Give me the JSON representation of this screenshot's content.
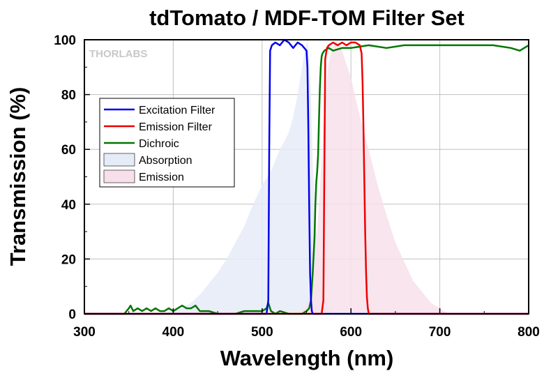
{
  "chart_data": {
    "type": "line",
    "title": "tdTomato / MDF-TOM Filter Set",
    "xlabel": "Wavelength (nm)",
    "ylabel": "Transmission (%)",
    "xlim": [
      300,
      800
    ],
    "ylim": [
      0,
      100
    ],
    "x_ticks": [
      300,
      400,
      500,
      600,
      700,
      800
    ],
    "y_ticks": [
      0,
      20,
      40,
      60,
      80,
      100
    ],
    "grid": true,
    "legend_position": "upper-left",
    "watermark": "THORLABS",
    "series": [
      {
        "name": "Excitation Filter",
        "color": "#0000ee",
        "kind": "line",
        "x": [
          300,
          505,
          507,
          508,
          509,
          511,
          515,
          520,
          525,
          530,
          535,
          540,
          545,
          550,
          551,
          552,
          553,
          554,
          555,
          556,
          557,
          800
        ],
        "y": [
          0,
          0,
          5,
          60,
          96,
          98,
          99,
          98,
          100,
          99,
          97,
          99,
          98,
          96,
          90,
          70,
          40,
          15,
          5,
          1,
          0,
          0
        ]
      },
      {
        "name": "Emission Filter",
        "color": "#ee0000",
        "kind": "line",
        "x": [
          300,
          567,
          569,
          570,
          571,
          573,
          575,
          580,
          585,
          590,
          595,
          600,
          605,
          610,
          612,
          613,
          614,
          615,
          616,
          617,
          618,
          619,
          620,
          800
        ],
        "y": [
          0,
          0,
          5,
          50,
          93,
          97,
          98,
          99,
          98,
          99,
          98,
          99,
          99,
          98,
          95,
          85,
          70,
          50,
          30,
          15,
          6,
          2,
          0,
          0
        ]
      },
      {
        "name": "Dichroic",
        "color": "#007700",
        "kind": "line",
        "x": [
          300,
          345,
          350,
          352,
          355,
          360,
          365,
          370,
          375,
          380,
          385,
          390,
          395,
          400,
          405,
          410,
          415,
          420,
          425,
          430,
          440,
          450,
          460,
          470,
          480,
          490,
          500,
          505,
          507,
          510,
          515,
          520,
          530,
          540,
          545,
          550,
          553,
          555,
          557,
          559,
          560,
          561,
          562,
          563,
          564,
          565,
          566,
          567,
          568,
          570,
          575,
          580,
          590,
          600,
          620,
          640,
          660,
          680,
          700,
          720,
          740,
          760,
          780,
          790,
          795,
          800
        ],
        "y": [
          0,
          0,
          2,
          3,
          1,
          2,
          1,
          2,
          1,
          2,
          1,
          1,
          2,
          1,
          2,
          3,
          2,
          2,
          3,
          1,
          1,
          0,
          0,
          0,
          1,
          1,
          1,
          2,
          4,
          1,
          0,
          1,
          0,
          0,
          0,
          1,
          2,
          5,
          15,
          28,
          40,
          48,
          52,
          58,
          70,
          82,
          90,
          94,
          95,
          96,
          97,
          96,
          97,
          97,
          98,
          97,
          98,
          98,
          98,
          98,
          98,
          98,
          97,
          96,
          97,
          98
        ]
      },
      {
        "name": "Absorption",
        "color": "#e6ebf8",
        "kind": "area",
        "x": [
          350,
          380,
          400,
          410,
          420,
          430,
          440,
          450,
          460,
          470,
          480,
          490,
          500,
          510,
          515,
          520,
          525,
          530,
          535,
          540,
          545,
          548,
          551,
          553,
          555,
          557,
          560,
          565,
          570,
          575,
          580,
          590,
          600
        ],
        "y": [
          0,
          0,
          1,
          2,
          4,
          7,
          11,
          15,
          20,
          26,
          32,
          40,
          47,
          52,
          56,
          60,
          63,
          66,
          72,
          80,
          90,
          96,
          100,
          95,
          78,
          55,
          35,
          15,
          6,
          3,
          1,
          0,
          0
        ]
      },
      {
        "name": "Emission",
        "color": "#f8e0ea",
        "kind": "area",
        "x": [
          540,
          550,
          555,
          560,
          565,
          570,
          575,
          580,
          585,
          590,
          595,
          600,
          605,
          610,
          620,
          630,
          640,
          650,
          660,
          670,
          680,
          690,
          700,
          710
        ],
        "y": [
          0,
          3,
          8,
          20,
          45,
          75,
          92,
          98,
          100,
          96,
          91,
          86,
          79,
          72,
          60,
          47,
          36,
          26,
          19,
          12,
          8,
          4,
          2,
          0
        ]
      }
    ]
  }
}
